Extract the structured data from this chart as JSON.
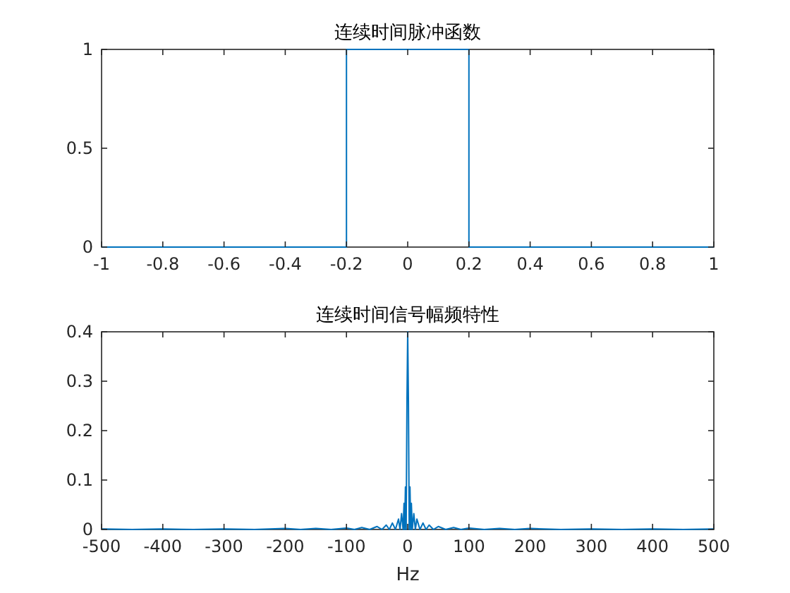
{
  "chart_data": [
    {
      "type": "line",
      "title": "连续时间脉冲函数",
      "xlim": [
        -1,
        1
      ],
      "ylim": [
        0,
        1
      ],
      "xticks": [
        -1,
        -0.8,
        -0.6,
        -0.4,
        -0.2,
        0,
        0.2,
        0.4,
        0.6,
        0.8,
        1
      ],
      "yticks": [
        0,
        0.5,
        1
      ],
      "series": [
        {
          "color": "#0072bd",
          "x": [
            -1,
            -0.2,
            -0.2,
            0.2,
            0.2,
            1
          ],
          "values": [
            0,
            0,
            1,
            1,
            0,
            0
          ]
        }
      ]
    },
    {
      "type": "line",
      "title": "连续时间信号幅频特性",
      "xlabel": "Hz",
      "xlim": [
        -500,
        500
      ],
      "ylim": [
        0,
        0.4
      ],
      "xticks": [
        -500,
        -400,
        -300,
        -200,
        -100,
        0,
        100,
        200,
        300,
        400,
        500
      ],
      "yticks": [
        0,
        0.1,
        0.2,
        0.3,
        0.4
      ],
      "series": [
        {
          "color": "#0072bd",
          "x": [
            -500,
            -450,
            -400,
            -350,
            -300,
            -250,
            -200,
            -175,
            -150,
            -125,
            -100,
            -87,
            -75,
            -62,
            -50,
            -42,
            -35,
            -30,
            -25,
            -20,
            -15,
            -12.5,
            -10,
            -7.5,
            -6,
            -5,
            -3.7,
            -2.5,
            -1.2,
            0,
            1.2,
            2.5,
            3.7,
            5,
            6,
            7.5,
            10,
            12.5,
            15,
            20,
            25,
            30,
            35,
            42,
            50,
            62,
            75,
            87,
            100,
            125,
            150,
            175,
            200,
            250,
            300,
            350,
            400,
            450,
            500
          ],
          "values": [
            0.001,
            0,
            0.001,
            0,
            0.001,
            0,
            0.002,
            0,
            0.002,
            0,
            0.003,
            0,
            0.004,
            0,
            0.006,
            0,
            0.009,
            0,
            0.013,
            0,
            0.021,
            0,
            0.032,
            0,
            0.053,
            0,
            0.086,
            0,
            0.26,
            0.4,
            0.26,
            0,
            0.086,
            0,
            0.053,
            0,
            0.032,
            0,
            0.021,
            0,
            0.013,
            0,
            0.009,
            0,
            0.006,
            0,
            0.004,
            0,
            0.003,
            0,
            0.002,
            0,
            0.002,
            0,
            0.001,
            0,
            0.001,
            0,
            0.001
          ]
        }
      ]
    }
  ]
}
